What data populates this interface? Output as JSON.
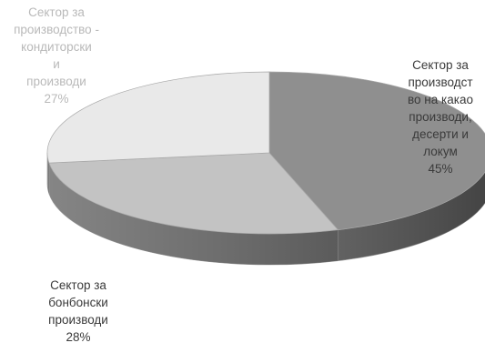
{
  "chart_data": {
    "type": "pie",
    "style": "3d",
    "title": "",
    "slices": [
      {
        "label_lines": [
          "Сектор за",
          "производст",
          "во на какао",
          "производи,",
          "десерти и",
          "локум"
        ],
        "value": 45,
        "percent_label": "45%",
        "color": "#8f8f8f"
      },
      {
        "label_lines": [
          "Сектор за",
          "бонбонски",
          "производи"
        ],
        "value": 28,
        "percent_label": "28%",
        "color": "#c3c3c3"
      },
      {
        "label_lines": [
          "Сектор за",
          "производство -",
          "кондиторски",
          "и",
          "производи"
        ],
        "value": 27,
        "percent_label": "27%",
        "color": "#e9e9e9"
      }
    ],
    "legend": "none"
  }
}
